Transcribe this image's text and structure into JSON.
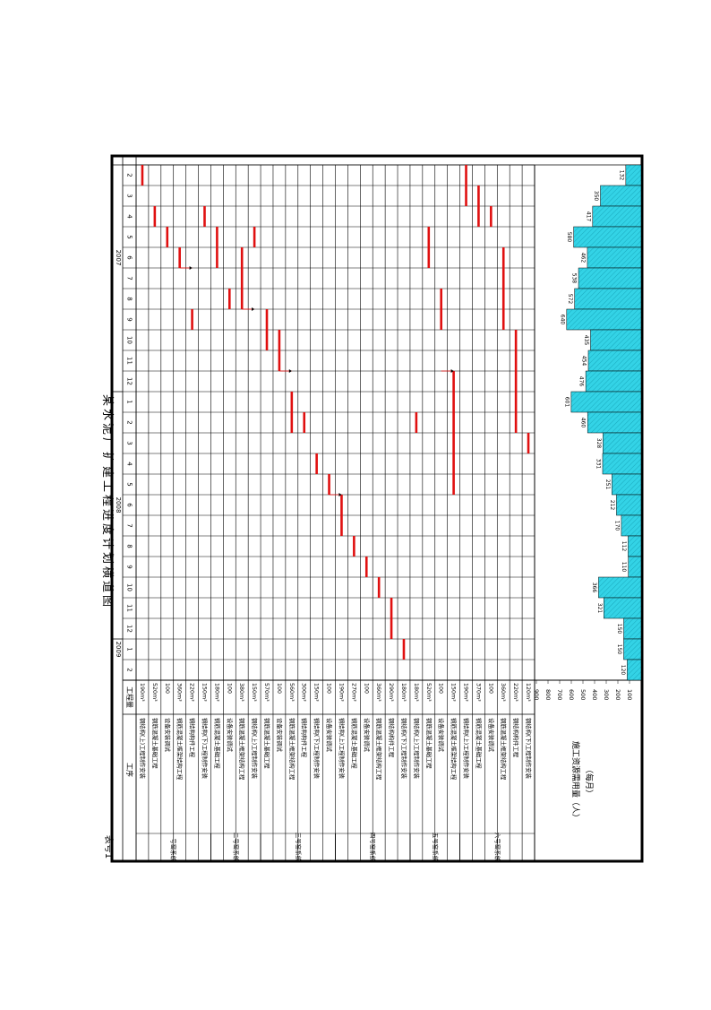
{
  "header": {
    "title": "某水泥厂扩建工程进度计划横道图",
    "table_no": "表号1"
  },
  "columns": {
    "process": "工序",
    "quantity": "工程量"
  },
  "years": [
    "2007",
    "2008",
    "2009"
  ],
  "months": [
    "2",
    "3",
    "4",
    "5",
    "6",
    "7",
    "8",
    "9",
    "10",
    "11",
    "12",
    "1",
    "2",
    "3",
    "4",
    "5",
    "6",
    "7",
    "8",
    "9",
    "10",
    "11",
    "12",
    "1",
    "2"
  ],
  "groups": [
    "一号窑系统",
    "二号窑系统",
    "三号窑系统",
    "四号窑系统",
    "五号窑系统",
    "六号窑系统"
  ],
  "rows": [
    {
      "name": "钢结构(上)工程制作安装",
      "qty": "190m³"
    },
    {
      "name": "钢筋混凝土基础工程",
      "qty": "520m³"
    },
    {
      "name": "设备安装调试",
      "qty": "100"
    },
    {
      "name": "钢筋混凝土框架结构工程",
      "qty": "360m³"
    },
    {
      "name": "钢结构构件工程",
      "qty": "220m³"
    },
    {
      "name": "钢结构(下)工程制作安装",
      "qty": "150m³"
    },
    {
      "name": "钢筋混凝土基础工程",
      "qty": "180m³"
    },
    {
      "name": "设备安装调试",
      "qty": "100"
    },
    {
      "name": "钢筋混凝土框架结构工程",
      "qty": "380m³"
    },
    {
      "name": "钢结构(上)工程制作安装",
      "qty": "150m³"
    },
    {
      "name": "钢筋混凝土基础工程",
      "qty": "570m³"
    },
    {
      "name": "设备安装调试",
      "qty": "100"
    },
    {
      "name": "钢筋混凝土框架结构工程",
      "qty": "560m³"
    },
    {
      "name": "钢结构构件工程",
      "qty": "300m³"
    },
    {
      "name": "钢结构(下)工程制作安装",
      "qty": "150m³"
    },
    {
      "name": "设备安装调试",
      "qty": "100"
    },
    {
      "name": "钢结构(上)工程制作安装",
      "qty": "190m³"
    },
    {
      "name": "钢筋混凝土基础工程",
      "qty": "270m³"
    },
    {
      "name": "设备安装调试",
      "qty": "100"
    },
    {
      "name": "钢筋混凝土框架结构工程",
      "qty": "360m³"
    },
    {
      "name": "钢结构构件工程",
      "qty": "290m³"
    },
    {
      "name": "钢结构(下)工程制作安装",
      "qty": "180m³"
    },
    {
      "name": "钢结构(上)工程制作安装",
      "qty": "180m³"
    },
    {
      "name": "钢筋混凝土基础工程",
      "qty": "520m³"
    },
    {
      "name": "设备安装调试",
      "qty": "100"
    },
    {
      "name": "钢筋混凝土框架结构工程",
      "qty": "150m³"
    },
    {
      "name": "钢结构(上)工程制作安装",
      "qty": "190m³"
    },
    {
      "name": "钢筋混凝土基础工程",
      "qty": "370m³"
    },
    {
      "name": "设备安装调试",
      "qty": "100"
    },
    {
      "name": "钢筋混凝土框架结构工程",
      "qty": "360m³"
    },
    {
      "name": "钢结构构件工程",
      "qty": "220m³"
    },
    {
      "name": "钢结构(下)工程制作安装",
      "qty": "120m³"
    }
  ],
  "resource_axis": {
    "ticks": [
      "900",
      "800",
      "700",
      "600",
      "500",
      "400",
      "300",
      "200",
      "100"
    ],
    "label": "施工资源需用量（人）",
    "sublabel": "（每月）"
  },
  "chart_data": {
    "type": "gantt",
    "time_axis": {
      "start": "2007-02",
      "end": "2009-02",
      "unit": "month"
    },
    "tasks": [
      {
        "row": 0,
        "start": "2007-02",
        "end": "2007-03"
      },
      {
        "row": 1,
        "start": "2007-04",
        "end": "2007-05"
      },
      {
        "row": 2,
        "start": "2007-05",
        "end": "2007-06"
      },
      {
        "row": 3,
        "start": "2007-06",
        "end": "2007-07"
      },
      {
        "row": 4,
        "start": "2007-09",
        "end": "2007-10"
      },
      {
        "row": 5,
        "start": "2007-04",
        "end": "2007-05"
      },
      {
        "row": 6,
        "start": "2007-05",
        "end": "2007-07"
      },
      {
        "row": 7,
        "start": "2007-08",
        "end": "2007-09"
      },
      {
        "row": 8,
        "start": "2007-06",
        "end": "2007-09"
      },
      {
        "row": 9,
        "start": "2007-05",
        "end": "2007-06"
      },
      {
        "row": 10,
        "start": "2007-09",
        "end": "2007-11"
      },
      {
        "row": 11,
        "start": "2007-10",
        "end": "2007-12"
      },
      {
        "row": 12,
        "start": "2008-01",
        "end": "2008-03"
      },
      {
        "row": 13,
        "start": "2008-02",
        "end": "2008-03"
      },
      {
        "row": 14,
        "start": "2008-04",
        "end": "2008-05"
      },
      {
        "row": 15,
        "start": "2008-05",
        "end": "2008-06"
      },
      {
        "row": 16,
        "start": "2008-06",
        "end": "2008-08"
      },
      {
        "row": 17,
        "start": "2008-08",
        "end": "2008-09"
      },
      {
        "row": 18,
        "start": "2008-09",
        "end": "2008-10"
      },
      {
        "row": 19,
        "start": "2008-10",
        "end": "2008-11"
      },
      {
        "row": 20,
        "start": "2008-11",
        "end": "2009-01"
      },
      {
        "row": 21,
        "start": "2009-01",
        "end": "2009-02"
      },
      {
        "row": 22,
        "start": "2008-02",
        "end": "2008-03"
      },
      {
        "row": 23,
        "start": "2007-05",
        "end": "2007-07"
      },
      {
        "row": 24,
        "start": "2007-08",
        "end": "2007-10"
      },
      {
        "row": 25,
        "start": "2007-12",
        "end": "2008-06"
      },
      {
        "row": 26,
        "start": "2007-02",
        "end": "2007-04"
      },
      {
        "row": 27,
        "start": "2007-03",
        "end": "2007-05"
      },
      {
        "row": 28,
        "start": "2007-04",
        "end": "2007-05"
      },
      {
        "row": 29,
        "start": "2007-06",
        "end": "2007-10"
      },
      {
        "row": 30,
        "start": "2007-10",
        "end": "2008-03"
      },
      {
        "row": 31,
        "start": "2008-03",
        "end": "2008-04"
      }
    ],
    "resource": {
      "months": [
        "2007-02",
        "2007-03",
        "2007-04",
        "2007-05",
        "2007-06",
        "2007-07",
        "2007-08",
        "2007-09",
        "2007-10",
        "2007-11",
        "2007-12",
        "2008-01",
        "2008-02",
        "2008-03",
        "2008-04",
        "2008-05",
        "2008-06",
        "2008-07",
        "2008-08",
        "2008-09",
        "2008-10",
        "2008-11",
        "2008-12",
        "2009-01",
        "2009-02"
      ],
      "values": [
        132,
        350,
        417,
        580,
        462,
        538,
        572,
        640,
        435,
        454,
        476,
        601,
        460,
        328,
        331,
        251,
        212,
        170,
        112,
        110,
        366,
        321,
        150,
        150,
        120
      ],
      "labels": [
        "132",
        "350",
        "417",
        "580",
        "462",
        "538",
        "572",
        "640",
        "435",
        "454",
        "476",
        "601",
        "460",
        "328",
        "331",
        "251",
        "212",
        "170",
        "112",
        "110",
        "366",
        "321",
        "150",
        "150",
        "120"
      ],
      "max": 900
    }
  }
}
